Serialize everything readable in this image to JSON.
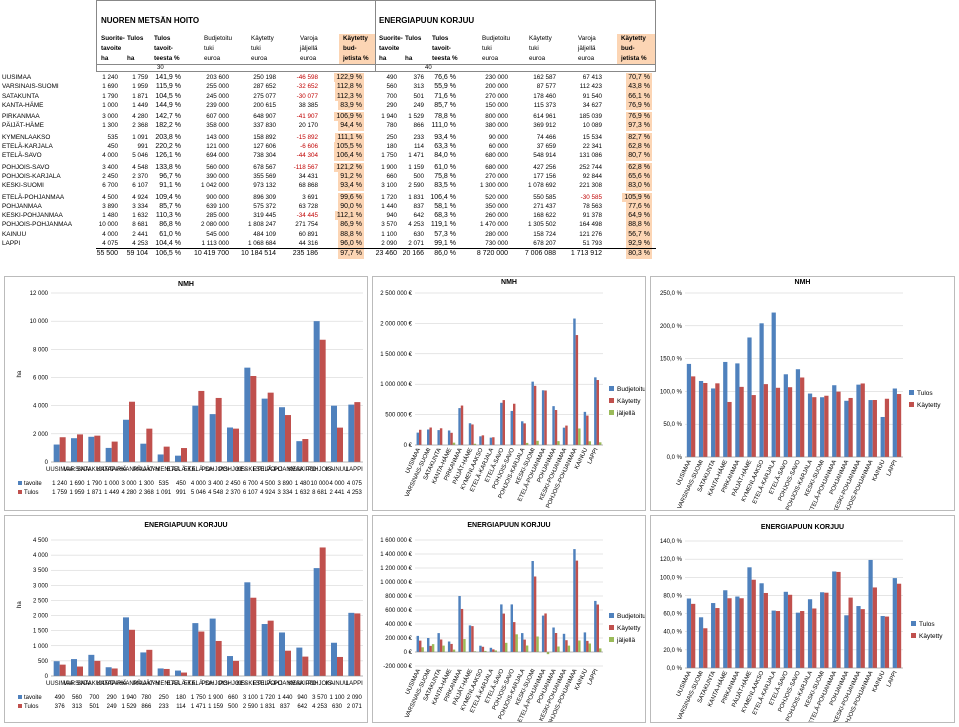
{
  "header": {
    "left_title": "NUOREN METSÄN HOITO",
    "right_title": "ENERGIAPUUN KORJUU",
    "col_texts": [
      [
        "Suorite-",
        "tavoite",
        "ha"
      ],
      [
        "Tulos",
        "",
        "ha"
      ],
      [
        "Tulos",
        "tavoit-",
        "teesta %"
      ],
      [
        "Budjetoitu",
        "tuki",
        "euroa"
      ],
      [
        "Käytetty",
        "tuki",
        "euroa"
      ],
      [
        "Varoja",
        "jäljellä",
        "euroa"
      ],
      [
        "Käytetty",
        "bud-",
        "jetista %"
      ]
    ],
    "col_texts_right": [
      [
        "Suorite-",
        "tavoite",
        "ha"
      ],
      [
        "Tulos",
        "",
        "ha"
      ],
      [
        "Tulos",
        "tavoit-",
        "teesta %"
      ],
      [
        "Budjetoitu",
        "tuki",
        "euroa"
      ],
      [
        "Käytetty",
        "tuki",
        "euroa"
      ],
      [
        "Varoja",
        "jäljellä",
        "euroa"
      ],
      [
        "Käytetty",
        "bud-",
        "jetista %"
      ]
    ],
    "sub_left": "30",
    "sub_right": "40"
  },
  "rows": [
    [
      "UUSIMAA",
      "1 240",
      "1 759",
      "141,9 %",
      "203 600",
      "250 198",
      "-46 598",
      "122,9 %",
      "490",
      "376",
      "76,6 %",
      "230 000",
      "162 587",
      "67 413",
      "70,7 %"
    ],
    [
      "VARSINAIS-SUOMI",
      "1 690",
      "1 959",
      "115,9 %",
      "255 000",
      "287 652",
      "-32 652",
      "112,8 %",
      "560",
      "313",
      "55,9 %",
      "200 000",
      "87 577",
      "112 423",
      "43,8 %"
    ],
    [
      "SATAKUNTA",
      "1 790",
      "1 871",
      "104,5 %",
      "245 000",
      "275 077",
      "-30 077",
      "112,3 %",
      "700",
      "501",
      "71,6 %",
      "270 000",
      "178 460",
      "91 540",
      "66,1 %"
    ],
    [
      "KANTA-HÄME",
      "1 000",
      "1 449",
      "144,9 %",
      "239 000",
      "200 615",
      "38 385",
      "83,9 %",
      "290",
      "249",
      "85,7 %",
      "150 000",
      "115 373",
      "34 627",
      "76,9 %"
    ],
    [
      "PIRKANMAA",
      "3 000",
      "4 280",
      "142,7 %",
      "607 000",
      "648 907",
      "-41 907",
      "106,9 %",
      "1 940",
      "1 529",
      "78,8 %",
      "800 000",
      "614 961",
      "185 039",
      "76,9 %"
    ],
    [
      "PÄIJÄT-HÄME",
      "1 300",
      "2 368",
      "182,2 %",
      "358 000",
      "337 830",
      "20 170",
      "94,4 %",
      "780",
      "866",
      "111,0 %",
      "380 000",
      "369 912",
      "10 089",
      "97,3 %"
    ],
    [
      "KYMENLAAKSO",
      "535",
      "1 091",
      "203,8 %",
      "143 000",
      "158 892",
      "-15 892",
      "111,1 %",
      "250",
      "233",
      "93,4 %",
      "90 000",
      "74 466",
      "15 534",
      "82,7 %"
    ],
    [
      "ETELÄ-KARJALA",
      "450",
      "991",
      "220,2 %",
      "121 000",
      "127 606",
      "-6 606",
      "105,5 %",
      "180",
      "114",
      "63,3 %",
      "60 000",
      "37 659",
      "22 341",
      "62,8 %"
    ],
    [
      "ETELÄ-SAVO",
      "4 000",
      "5 046",
      "126,1 %",
      "694 000",
      "738 304",
      "-44 304",
      "106,4 %",
      "1 750",
      "1 471",
      "84,0 %",
      "680 000",
      "548 914",
      "131 086",
      "80,7 %"
    ],
    [
      "POHJOIS-SAVO",
      "3 400",
      "4 548",
      "133,8 %",
      "560 000",
      "678 567",
      "-118 567",
      "121,2 %",
      "1 900",
      "1 159",
      "61,0 %",
      "680 000",
      "427 256",
      "252 744",
      "62,8 %"
    ],
    [
      "POHJOIS-KARJALA",
      "2 450",
      "2 370",
      "96,7 %",
      "390 000",
      "355 569",
      "34 431",
      "91,2 %",
      "660",
      "500",
      "75,8 %",
      "270 000",
      "177 156",
      "92 844",
      "65,6 %"
    ],
    [
      "KESKI-SUOMI",
      "6 700",
      "6 107",
      "91,1 %",
      "1 042 000",
      "973 132",
      "68 868",
      "93,4 %",
      "3 100",
      "2 590",
      "83,5 %",
      "1 300 000",
      "1 078 692",
      "221 308",
      "83,0 %"
    ],
    [
      "ETELÄ-POHJANMAA",
      "4 500",
      "4 924",
      "109,4 %",
      "900 000",
      "896 309",
      "3 691",
      "99,6 %",
      "1 720",
      "1 831",
      "106,4 %",
      "520 000",
      "550 585",
      "-30 585",
      "105,9 %"
    ],
    [
      "POHJANMAA",
      "3 890",
      "3 334",
      "85,7 %",
      "639 100",
      "575 372",
      "63 728",
      "90,0 %",
      "1 440",
      "837",
      "58,1 %",
      "350 000",
      "271 437",
      "78 563",
      "77,6 %"
    ],
    [
      "KESKI-POHJANMAA",
      "1 480",
      "1 632",
      "110,3 %",
      "285 000",
      "319 445",
      "-34 445",
      "112,1 %",
      "940",
      "642",
      "68,3 %",
      "260 000",
      "168 622",
      "91 378",
      "64,9 %"
    ],
    [
      "POHJOIS-POHJANMAA",
      "10 000",
      "8 681",
      "86,8 %",
      "2 080 000",
      "1 808 247",
      "271 754",
      "86,9 %",
      "3 570",
      "4 253",
      "119,1 %",
      "1 470 000",
      "1 305 502",
      "164 498",
      "88,8 %"
    ],
    [
      "KAINUU",
      "4 000",
      "2 441",
      "61,0 %",
      "545 000",
      "484 109",
      "60 891",
      "88,8 %",
      "1 100",
      "630",
      "57,3 %",
      "280 000",
      "158 724",
      "121 276",
      "56,7 %"
    ],
    [
      "LAPPI",
      "4 075",
      "4 253",
      "104,4 %",
      "1 113 000",
      "1 068 684",
      "44 316",
      "96,0 %",
      "2 090",
      "2 071",
      "99,1 %",
      "730 000",
      "678 207",
      "51 793",
      "92,9 %"
    ]
  ],
  "total": [
    "",
    "55 500",
    "59 104",
    "106,5 %",
    "10 419 700",
    "10 184 514",
    "235 186",
    "97,7 %",
    "23 460",
    "20 166",
    "86,0 %",
    "8 720 000",
    "7 006 088",
    "1 713 912",
    "80,3 %"
  ],
  "chart_data": [
    {
      "type": "bar",
      "title": "NMH",
      "ylabel": "ha",
      "ylim": [
        0,
        12000
      ],
      "yticks": [
        "0",
        "2 000",
        "4 000",
        "6 000",
        "8 000",
        "10 000",
        "12 000"
      ],
      "categories": [
        "UUSIMAA",
        "VARSINAIS-SUOMI",
        "SATAKUNTA",
        "KANTA-HÄME",
        "PIRKANMAA",
        "PÄIJÄT-HÄME",
        "KYMENLAAKSO",
        "ETELÄ-KARJALA",
        "ETELÄ-SAVO",
        "POHJOIS-SAVO",
        "POHJOIS-KARJALA",
        "KESKI-SUOMI",
        "ETELÄ-POHJANMAA",
        "POHJANMAA",
        "KESKI-POHJANMAA",
        "POHJOIS-POHJANMAA",
        "KAINUU",
        "LAPPI"
      ],
      "series": [
        {
          "name": "tavoite",
          "values": [
            1240,
            1690,
            1790,
            1000,
            3000,
            1300,
            535,
            450,
            4000,
            3400,
            2450,
            6700,
            4500,
            3890,
            1480,
            10000,
            4000,
            4075
          ]
        },
        {
          "name": "Tulos",
          "values": [
            1759,
            1959,
            1871,
            1449,
            4280,
            2368,
            1091,
            991,
            5046,
            4548,
            2370,
            6107,
            4924,
            3334,
            1632,
            8681,
            2441,
            4253
          ]
        }
      ]
    },
    {
      "type": "bar",
      "title": "NMH",
      "ylim": [
        0,
        2500000
      ],
      "yticks": [
        "0 €",
        "500 000 €",
        "1 000 000 €",
        "1 500 000 €",
        "2 000 000 €",
        "2 500 000 €"
      ],
      "series": [
        {
          "name": "Budjetoitu",
          "values": [
            203600,
            255000,
            245000,
            239000,
            607000,
            358000,
            143000,
            121000,
            694000,
            560000,
            390000,
            1042000,
            900000,
            639100,
            285000,
            2080000,
            545000,
            1113000
          ]
        },
        {
          "name": "Käytetty",
          "values": [
            250198,
            287652,
            275077,
            200615,
            648907,
            337830,
            158892,
            127606,
            738304,
            678567,
            355569,
            973132,
            896309,
            575372,
            319445,
            1808247,
            484109,
            1068684
          ]
        },
        {
          "name": "jäljellä",
          "values": [
            0,
            0,
            0,
            38385,
            0,
            20170,
            0,
            0,
            0,
            0,
            34431,
            68868,
            3691,
            63728,
            0,
            271754,
            60891,
            44316
          ]
        }
      ]
    },
    {
      "type": "bar",
      "title": "NMH",
      "ylim": [
        0,
        250
      ],
      "yticks": [
        "0,0 %",
        "50,0 %",
        "100,0 %",
        "150,0 %",
        "200,0 %",
        "250,0 %"
      ],
      "series": [
        {
          "name": "Tulos",
          "values": [
            141.9,
            115.9,
            104.5,
            144.9,
            142.7,
            182.2,
            203.8,
            220.2,
            126.1,
            133.8,
            96.7,
            91.1,
            109.4,
            85.7,
            110.3,
            86.8,
            61.0,
            104.4
          ]
        },
        {
          "name": "Käytetty",
          "values": [
            122.9,
            112.8,
            112.3,
            83.9,
            106.9,
            94.4,
            111.1,
            105.5,
            106.4,
            121.2,
            91.2,
            93.4,
            99.6,
            90.0,
            112.1,
            86.9,
            88.8,
            96.0
          ]
        }
      ]
    },
    {
      "type": "bar",
      "title": "ENERGIAPUUN KORJUU",
      "ylabel": "ha",
      "ylim": [
        0,
        4500
      ],
      "yticks": [
        "0",
        "500",
        "1 000",
        "1 500",
        "2 000",
        "2 500",
        "3 000",
        "3 500",
        "4 000",
        "4 500"
      ],
      "series": [
        {
          "name": "tavoite",
          "values": [
            490,
            560,
            700,
            290,
            1940,
            780,
            250,
            180,
            1750,
            1900,
            660,
            3100,
            1720,
            1440,
            940,
            3570,
            1100,
            2090
          ]
        },
        {
          "name": "Tulos",
          "values": [
            376,
            313,
            501,
            249,
            1529,
            866,
            233,
            114,
            1471,
            1159,
            500,
            2590,
            1831,
            837,
            642,
            4253,
            630,
            2071
          ]
        }
      ]
    },
    {
      "type": "bar",
      "title": "ENERGIAPUUN KORJUU",
      "ylim": [
        -200000,
        1600000
      ],
      "yticks": [
        "-200 000 €",
        "0 €",
        "200 000 €",
        "400 000 €",
        "600 000 €",
        "800 000 €",
        "1 000 000 €",
        "1 200 000 €",
        "1 400 000 €",
        "1 600 000 €"
      ],
      "series": [
        {
          "name": "Budjetoitu",
          "values": [
            230000,
            200000,
            270000,
            150000,
            800000,
            380000,
            90000,
            60000,
            680000,
            680000,
            270000,
            1300000,
            520000,
            350000,
            260000,
            1470000,
            280000,
            730000
          ]
        },
        {
          "name": "Käytetty",
          "values": [
            162587,
            87577,
            178460,
            115373,
            614961,
            369912,
            74466,
            37659,
            548914,
            427256,
            177156,
            1078692,
            550585,
            271437,
            168622,
            1305502,
            158724,
            678207
          ]
        },
        {
          "name": "jäljellä",
          "values": [
            67413,
            112423,
            91540,
            34627,
            185039,
            10089,
            15534,
            22341,
            131086,
            252744,
            92844,
            221308,
            -30585,
            78563,
            91378,
            164498,
            121276,
            51793
          ]
        }
      ]
    },
    {
      "type": "bar",
      "title": "ENERGIAPUUN KORJUU",
      "ylim": [
        0,
        140
      ],
      "yticks": [
        "0,0 %",
        "20,0 %",
        "40,0 %",
        "60,0 %",
        "80,0 %",
        "100,0 %",
        "120,0 %",
        "140,0 %"
      ],
      "series": [
        {
          "name": "Tulos",
          "values": [
            76.6,
            55.9,
            71.6,
            85.7,
            78.8,
            111.0,
            93.4,
            63.3,
            84.0,
            61.0,
            75.8,
            83.5,
            106.4,
            58.1,
            68.3,
            119.1,
            57.3,
            99.1
          ]
        },
        {
          "name": "Käytetty",
          "values": [
            70.7,
            43.8,
            66.1,
            76.9,
            76.9,
            97.3,
            82.7,
            62.8,
            80.7,
            62.8,
            65.6,
            83.0,
            105.9,
            77.6,
            64.9,
            88.8,
            56.7,
            92.9
          ]
        }
      ]
    }
  ],
  "colors": {
    "blue": "#4f81bd",
    "red": "#c0504d",
    "green": "#9bbb59",
    "peach": "#fcd5b4"
  }
}
